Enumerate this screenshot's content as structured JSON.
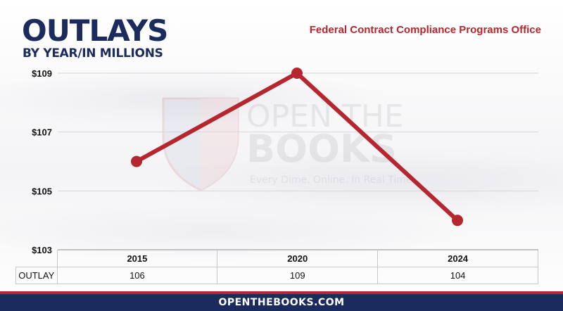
{
  "header": {
    "title": "OUTLAYS",
    "subtitle": "BY YEAR/IN MILLIONS",
    "agency": "Federal Contract Compliance Programs Office"
  },
  "watermark": {
    "line1": "OPEN THE",
    "line2": "BOOKS",
    "tagline": "Every Dime. Online. In Real Time.",
    "icon": "shield-flag-logo"
  },
  "chart_data": {
    "type": "line",
    "categories": [
      "2015",
      "2020",
      "2024"
    ],
    "series": [
      {
        "values": [
          106,
          109,
          104
        ]
      }
    ],
    "y_ticks": [
      "$103",
      "$105",
      "$107",
      "$109"
    ],
    "ylim": [
      103,
      109
    ],
    "grid": true,
    "line_color": "#b5262e"
  },
  "table": {
    "row_label": "OUTLAY",
    "values": [
      "106",
      "109",
      "104"
    ]
  },
  "footer": {
    "text": "OPENTHEBOOKS.COM"
  },
  "colors": {
    "navy": "#1c2b5e",
    "red": "#b5262e"
  }
}
